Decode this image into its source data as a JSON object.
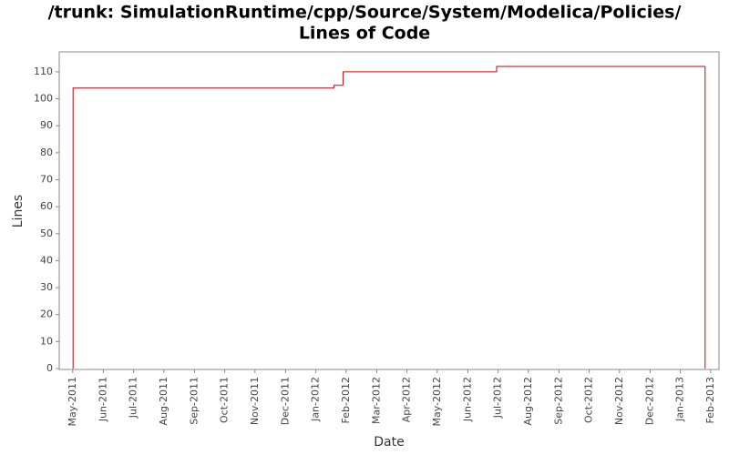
{
  "chart_data": {
    "type": "step",
    "title": [
      "/trunk: SimulationRuntime/cpp/Source/System/Modelica/Policies/",
      "Lines of Code"
    ],
    "x_label": "Date",
    "y_label": "Lines",
    "x": [
      2011.333,
      2011.334,
      2012.05,
      2012.075,
      2012.496,
      2013.068
    ],
    "series": [
      {
        "name": "Lines",
        "color": "#cc0000",
        "values": [
          0,
          104,
          105,
          110,
          112,
          0
        ]
      }
    ],
    "xlim": [
      2011.296,
      2013.106
    ],
    "xticks": [
      {
        "value": 2011.333,
        "label": "May-2011"
      },
      {
        "value": 2011.417,
        "label": "Jun-2011"
      },
      {
        "value": 2011.5,
        "label": "Jul-2011"
      },
      {
        "value": 2011.583,
        "label": "Aug-2011"
      },
      {
        "value": 2011.667,
        "label": "Sep-2011"
      },
      {
        "value": 2011.75,
        "label": "Oct-2011"
      },
      {
        "value": 2011.833,
        "label": "Nov-2011"
      },
      {
        "value": 2011.917,
        "label": "Dec-2011"
      },
      {
        "value": 2012.0,
        "label": "Jan-2012"
      },
      {
        "value": 2012.083,
        "label": "Feb-2012"
      },
      {
        "value": 2012.167,
        "label": "Mar-2012"
      },
      {
        "value": 2012.25,
        "label": "Apr-2012"
      },
      {
        "value": 2012.333,
        "label": "May-2012"
      },
      {
        "value": 2012.417,
        "label": "Jun-2012"
      },
      {
        "value": 2012.5,
        "label": "Jul-2012"
      },
      {
        "value": 2012.583,
        "label": "Aug-2012"
      },
      {
        "value": 2012.667,
        "label": "Sep-2012"
      },
      {
        "value": 2012.75,
        "label": "Oct-2012"
      },
      {
        "value": 2012.833,
        "label": "Nov-2012"
      },
      {
        "value": 2012.917,
        "label": "Dec-2012"
      },
      {
        "value": 2013.0,
        "label": "Jan-2013"
      },
      {
        "value": 2013.083,
        "label": "Feb-2013"
      }
    ],
    "ylim": [
      0,
      117.4
    ],
    "yticks": [
      0,
      10,
      20,
      30,
      40,
      50,
      60,
      70,
      80,
      90,
      100,
      110
    ],
    "grid": false
  }
}
